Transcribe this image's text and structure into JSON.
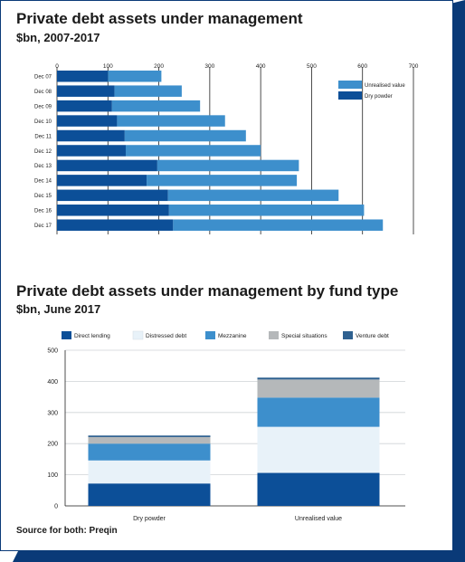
{
  "colors": {
    "dark_blue": "#0c4f98",
    "light_blue": "#3d8fcc",
    "pale": "#e8f2f9",
    "grey": "#b5b8ba",
    "steel": "#2f6190",
    "frame_dark": "#0a3a78"
  },
  "chart1": {
    "title": "Private debt assets under management",
    "subtitle": "$bn, 2007-2017"
  },
  "chart2": {
    "title": "Private debt assets under management by fund type",
    "subtitle": "$bn, June 2017"
  },
  "source": "Source for both: Preqin",
  "chart_data": [
    {
      "type": "bar",
      "orientation": "horizontal",
      "stacked": true,
      "title": "Private debt assets under management",
      "subtitle": "$bn, 2007-2017",
      "categories": [
        "Dec 07",
        "Dec 08",
        "Dec 09",
        "Dec 10",
        "Dec 11",
        "Dec 12",
        "Dec 13",
        "Dec 14",
        "Dec 15",
        "Dec 16",
        "Dec 17"
      ],
      "series": [
        {
          "name": "Dry powder",
          "color": "#0c4f98",
          "values": [
            100,
            113,
            108,
            118,
            133,
            135,
            197,
            176,
            218,
            220,
            228
          ]
        },
        {
          "name": "Unrealised value",
          "color": "#3d8fcc",
          "values": [
            105,
            132,
            173,
            212,
            238,
            265,
            278,
            295,
            335,
            383,
            412
          ]
        }
      ],
      "xlim": [
        0,
        700
      ],
      "xticks": [
        0,
        100,
        200,
        300,
        400,
        500,
        600,
        700
      ],
      "legend_position": "top-right",
      "grid": true
    },
    {
      "type": "bar",
      "orientation": "vertical",
      "stacked": true,
      "title": "Private debt assets under management by fund type",
      "subtitle": "$bn, June 2017",
      "categories": [
        "Dry powder",
        "Unrealised value"
      ],
      "series": [
        {
          "name": "Direct lending",
          "color": "#0c4f98",
          "values": [
            72,
            106
          ]
        },
        {
          "name": "Distressed debt",
          "color": "#e8f2f9",
          "values": [
            74,
            148
          ]
        },
        {
          "name": "Mezzanine",
          "color": "#3d8fcc",
          "values": [
            54,
            94
          ]
        },
        {
          "name": "Special situations",
          "color": "#b5b8ba",
          "values": [
            21,
            58
          ]
        },
        {
          "name": "Venture debt",
          "color": "#2f6190",
          "values": [
            5,
            6
          ]
        }
      ],
      "ylim": [
        0,
        500
      ],
      "yticks": [
        0,
        100,
        200,
        300,
        400,
        500
      ],
      "legend_position": "top",
      "grid": true
    }
  ]
}
